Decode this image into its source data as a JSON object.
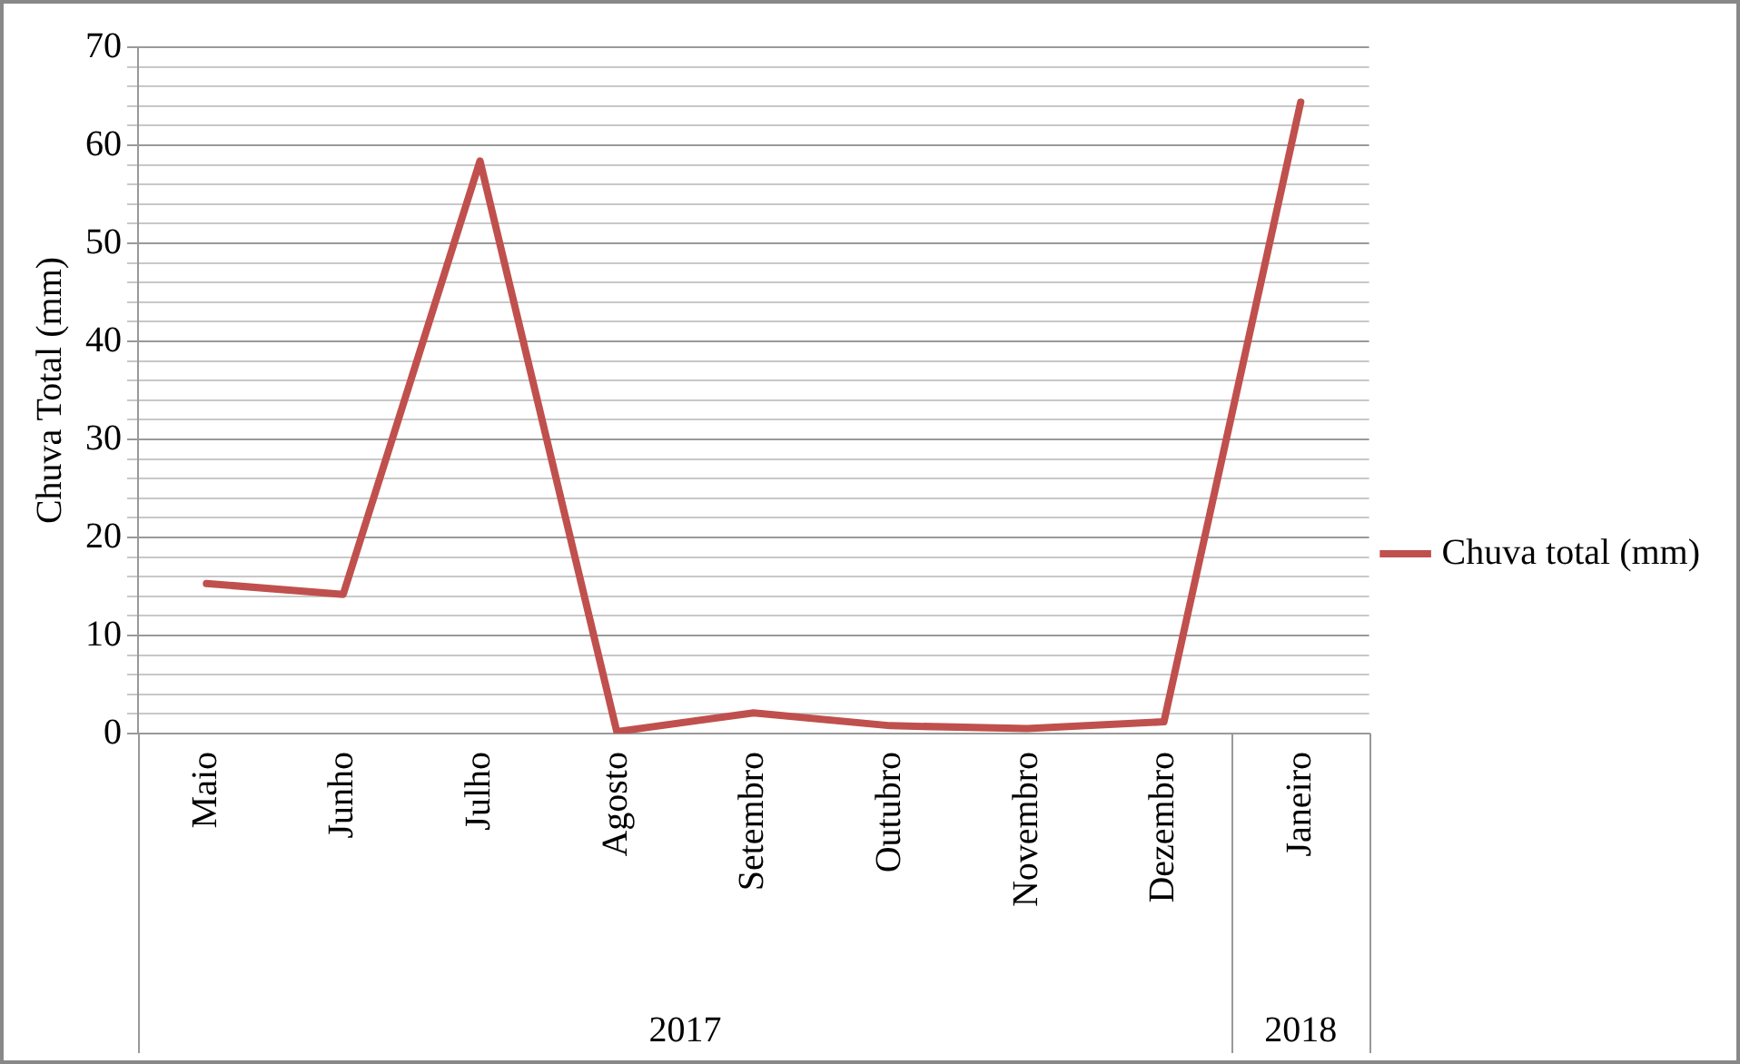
{
  "chart_data": {
    "type": "line",
    "ylabel": "Chuva Total (mm)",
    "categories": [
      "Maio",
      "Junho",
      "Julho",
      "Agosto",
      "Setembro",
      "Outubro",
      "Novembro",
      "Dezembro",
      "Janeiro"
    ],
    "series": [
      {
        "name": "Chuva total (mm)",
        "color": "#c0504d",
        "values": [
          15.3,
          14.2,
          58.4,
          0.2,
          2.1,
          0.8,
          0.5,
          1.2,
          64.4
        ]
      }
    ],
    "ylim": [
      0,
      70
    ],
    "yticks": [
      0,
      {
        "value": 2,
        "label": null
      },
      {
        "value": 4,
        "label": null
      },
      {
        "value": 6,
        "label": null
      },
      {
        "value": 8,
        "label": null
      },
      10,
      {
        "value": 12,
        "label": null
      },
      {
        "value": 14,
        "label": null
      },
      {
        "value": 16,
        "label": null
      },
      {
        "value": 18,
        "label": null
      },
      20,
      {
        "value": 22,
        "label": null
      },
      {
        "value": 24,
        "label": null
      },
      {
        "value": 26,
        "label": null
      },
      {
        "value": 28,
        "label": null
      },
      30,
      {
        "value": 32,
        "label": null
      },
      {
        "value": 34,
        "label": null
      },
      {
        "value": 36,
        "label": null
      },
      {
        "value": 38,
        "label": null
      },
      40,
      {
        "value": 42,
        "label": null
      },
      {
        "value": 44,
        "label": null
      },
      {
        "value": 46,
        "label": null
      },
      {
        "value": 48,
        "label": null
      },
      50,
      {
        "value": 52,
        "label": null
      },
      {
        "value": 54,
        "label": null
      },
      {
        "value": 56,
        "label": null
      },
      {
        "value": 58,
        "label": null
      },
      60,
      {
        "value": 62,
        "label": null
      },
      {
        "value": 64,
        "label": null
      },
      {
        "value": 66,
        "label": null
      },
      {
        "value": 68,
        "label": null
      },
      70
    ],
    "annotations": [
      "2017",
      "2018"
    ],
    "grid": true,
    "legend": "right",
    "marker": "none",
    "line_style": "solid"
  }
}
